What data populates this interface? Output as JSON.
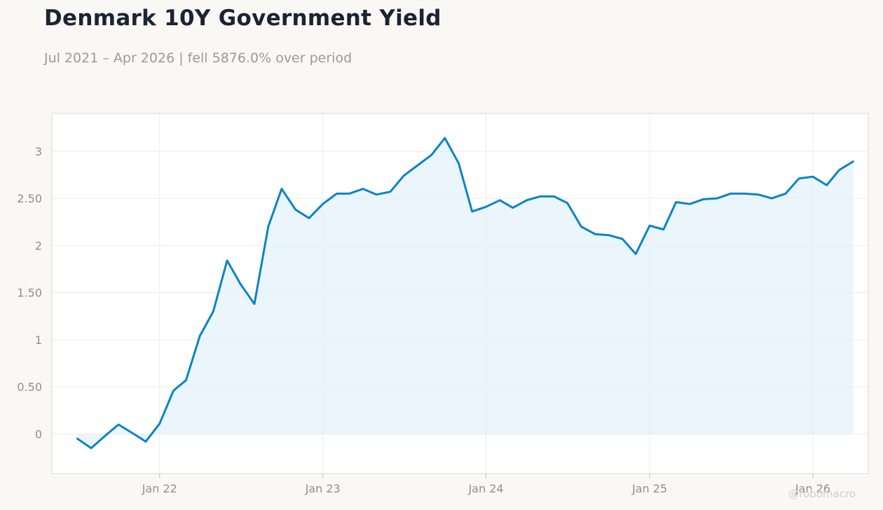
{
  "header": {
    "title": "Denmark 10Y Government Yield",
    "subtitle": "Jul 2021 – Apr 2026 | fell 5876.0% over period"
  },
  "watermark": "@robomacro",
  "colors": {
    "line": "#0a84c6",
    "fill": "#ddeefa",
    "grid": "#ececec",
    "frame": "#d9d9d9",
    "background": "#f9f8f5"
  },
  "chart_data": {
    "type": "area",
    "title": "Denmark 10Y Government Yield",
    "subtitle": "Jul 2021 – Apr 2026 | fell 5876.0% over period",
    "xlabel": "",
    "ylabel": "",
    "grid": true,
    "ylim": [
      -0.42,
      3.4
    ],
    "xlim": [
      "2021-05-05",
      "2026-05-05"
    ],
    "y_ticks": [
      {
        "value": 0,
        "label": "0"
      },
      {
        "value": 0.5,
        "label": "0.50"
      },
      {
        "value": 1,
        "label": "1"
      },
      {
        "value": 1.5,
        "label": "1.50"
      },
      {
        "value": 2,
        "label": "2"
      },
      {
        "value": 2.5,
        "label": "2.50"
      },
      {
        "value": 3,
        "label": "3"
      }
    ],
    "x_ticks": [
      {
        "date": "2022-01-01",
        "label": "Jan 22"
      },
      {
        "date": "2023-01-01",
        "label": "Jan 23"
      },
      {
        "date": "2024-01-01",
        "label": "Jan 24"
      },
      {
        "date": "2025-01-01",
        "label": "Jan 25"
      },
      {
        "date": "2026-01-01",
        "label": "Jan 26"
      }
    ],
    "series": [
      {
        "x": [
          "2021-07-01",
          "2021-08-01",
          "2021-09-01",
          "2021-10-01",
          "2021-11-01",
          "2021-12-01",
          "2022-01-01",
          "2022-02-01",
          "2022-03-01",
          "2022-04-01",
          "2022-05-01",
          "2022-06-01",
          "2022-07-01",
          "2022-08-01",
          "2022-09-01",
          "2022-10-01",
          "2022-11-01",
          "2022-12-01",
          "2023-01-01",
          "2023-02-01",
          "2023-03-01",
          "2023-04-01",
          "2023-05-01",
          "2023-06-01",
          "2023-07-01",
          "2023-08-01",
          "2023-09-01",
          "2023-10-01",
          "2023-11-01",
          "2023-12-01",
          "2024-01-01",
          "2024-02-01",
          "2024-03-01",
          "2024-04-01",
          "2024-05-01",
          "2024-06-01",
          "2024-07-01",
          "2024-08-01",
          "2024-09-01",
          "2024-10-01",
          "2024-11-01",
          "2024-12-01",
          "2025-01-01",
          "2025-02-01",
          "2025-03-01",
          "2025-04-01",
          "2025-05-01",
          "2025-06-01",
          "2025-07-01",
          "2025-08-01",
          "2025-09-01",
          "2025-10-01",
          "2025-11-01",
          "2025-12-01",
          "2026-01-01",
          "2026-02-01",
          "2026-03-01",
          "2026-04-01"
        ],
        "values": [
          -0.05,
          -0.15,
          -0.02,
          0.1,
          0.01,
          -0.08,
          0.11,
          0.46,
          0.57,
          1.04,
          1.3,
          1.84,
          1.59,
          1.38,
          2.2,
          2.6,
          2.38,
          2.29,
          2.44,
          2.55,
          2.55,
          2.6,
          2.54,
          2.57,
          2.74,
          2.85,
          2.96,
          3.14,
          2.87,
          2.36,
          2.41,
          2.48,
          2.4,
          2.48,
          2.52,
          2.52,
          2.45,
          2.2,
          2.12,
          2.11,
          2.07,
          1.91,
          2.21,
          2.17,
          2.46,
          2.44,
          2.49,
          2.5,
          2.55,
          2.55,
          2.54,
          2.5,
          2.55,
          2.71,
          2.73,
          2.64,
          2.8,
          2.89
        ]
      }
    ]
  }
}
